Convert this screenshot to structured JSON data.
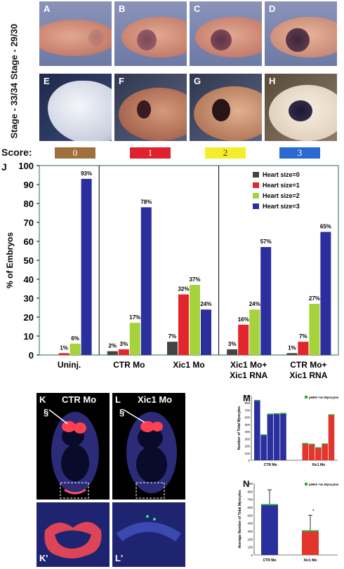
{
  "stage_labels": [
    "Stage - 29/30",
    "Stage - 33/34"
  ],
  "panels_top": [
    "A",
    "B",
    "C",
    "D"
  ],
  "panels_bottom": [
    "E",
    "F",
    "G",
    "H"
  ],
  "score": {
    "label": "Score:",
    "boxes": [
      {
        "text": "0",
        "color": "#a0703c",
        "text_color": "#ffffff"
      },
      {
        "text": "1",
        "color": "#e0202c",
        "text_color": "#ffffff"
      },
      {
        "text": "2",
        "color": "#f4ee2a",
        "text_color": "#333333"
      },
      {
        "text": "3",
        "color": "#2a6ad0",
        "text_color": "#ffffff"
      }
    ]
  },
  "fluor": {
    "K": {
      "letter": "K",
      "title": "CTR Mo",
      "mark": "§"
    },
    "L": {
      "letter": "L",
      "title": "Xic1 Mo",
      "mark": "§"
    },
    "K2": {
      "letter": "K'"
    },
    "L2": {
      "letter": "L'"
    }
  },
  "chart_data": [
    {
      "panel": "J",
      "type": "bar",
      "ylabel": "% of Embryos",
      "ylim": [
        0,
        100
      ],
      "yticks": [
        0,
        10,
        20,
        30,
        40,
        50,
        60,
        70,
        80,
        90,
        100
      ],
      "categories": [
        "Uninj.",
        "CTR Mo",
        "Xic1 Mo",
        "Xic1 Mo+\nXic1 RNA",
        "CTR Mo+\nXic1 RNA"
      ],
      "series": [
        {
          "name": "Heart size=0",
          "color": "#444444",
          "values": [
            0,
            2,
            7,
            3,
            1
          ]
        },
        {
          "name": "Heart size=1",
          "color": "#e2262c",
          "values": [
            1,
            3,
            32,
            16,
            7
          ]
        },
        {
          "name": "Heart size=2",
          "color": "#a6d23c",
          "values": [
            6,
            17,
            37,
            24,
            27
          ]
        },
        {
          "name": "Heart size=3",
          "color": "#2b2f9e",
          "values": [
            93,
            78,
            24,
            57,
            65
          ]
        }
      ],
      "labels": [
        [
          "",
          "1%",
          "6%",
          "93%"
        ],
        [
          "2%",
          "3%",
          "17%",
          "78%"
        ],
        [
          "7%",
          "32%",
          "37%",
          "24%"
        ],
        [
          "3%",
          "16%",
          "24%",
          "57%"
        ],
        [
          "1%",
          "7%",
          "27%",
          "65%"
        ]
      ],
      "legend_position": "top-right"
    },
    {
      "panel": "M",
      "type": "bar",
      "ylabel": "Number of Total Myocytes",
      "ylim": [
        0,
        900
      ],
      "yticks": [
        0,
        100,
        200,
        300,
        400,
        500,
        600,
        700,
        800,
        900
      ],
      "legend": "pHH3 +ve Myocytes",
      "groups": [
        "CTR Mo",
        "Xic1 Mo"
      ],
      "values": [
        840,
        360,
        650,
        655,
        660,
        240,
        230,
        180,
        235,
        640
      ],
      "bar_group": [
        0,
        0,
        0,
        0,
        0,
        1,
        1,
        1,
        1,
        1
      ],
      "phh3": [
        15,
        5,
        8,
        8,
        8,
        3,
        3,
        3,
        3,
        12
      ],
      "colors": [
        "#2b2f9e",
        "#e2362c"
      ],
      "legend_color": "#22aa44"
    },
    {
      "panel": "N",
      "type": "bar",
      "ylabel": "Average Number of Total Myocytes",
      "ylim": [
        0,
        900
      ],
      "yticks": [
        0,
        100,
        200,
        300,
        400,
        500,
        600,
        700,
        800,
        900
      ],
      "legend": "pHH3 +ve Myocytes",
      "categories": [
        "CTR Mo",
        "Xic1 Mo"
      ],
      "values": [
        640,
        310
      ],
      "errors": [
        180,
        190
      ],
      "colors": [
        "#2b2f9e",
        "#e2362c"
      ],
      "star": "*"
    }
  ]
}
